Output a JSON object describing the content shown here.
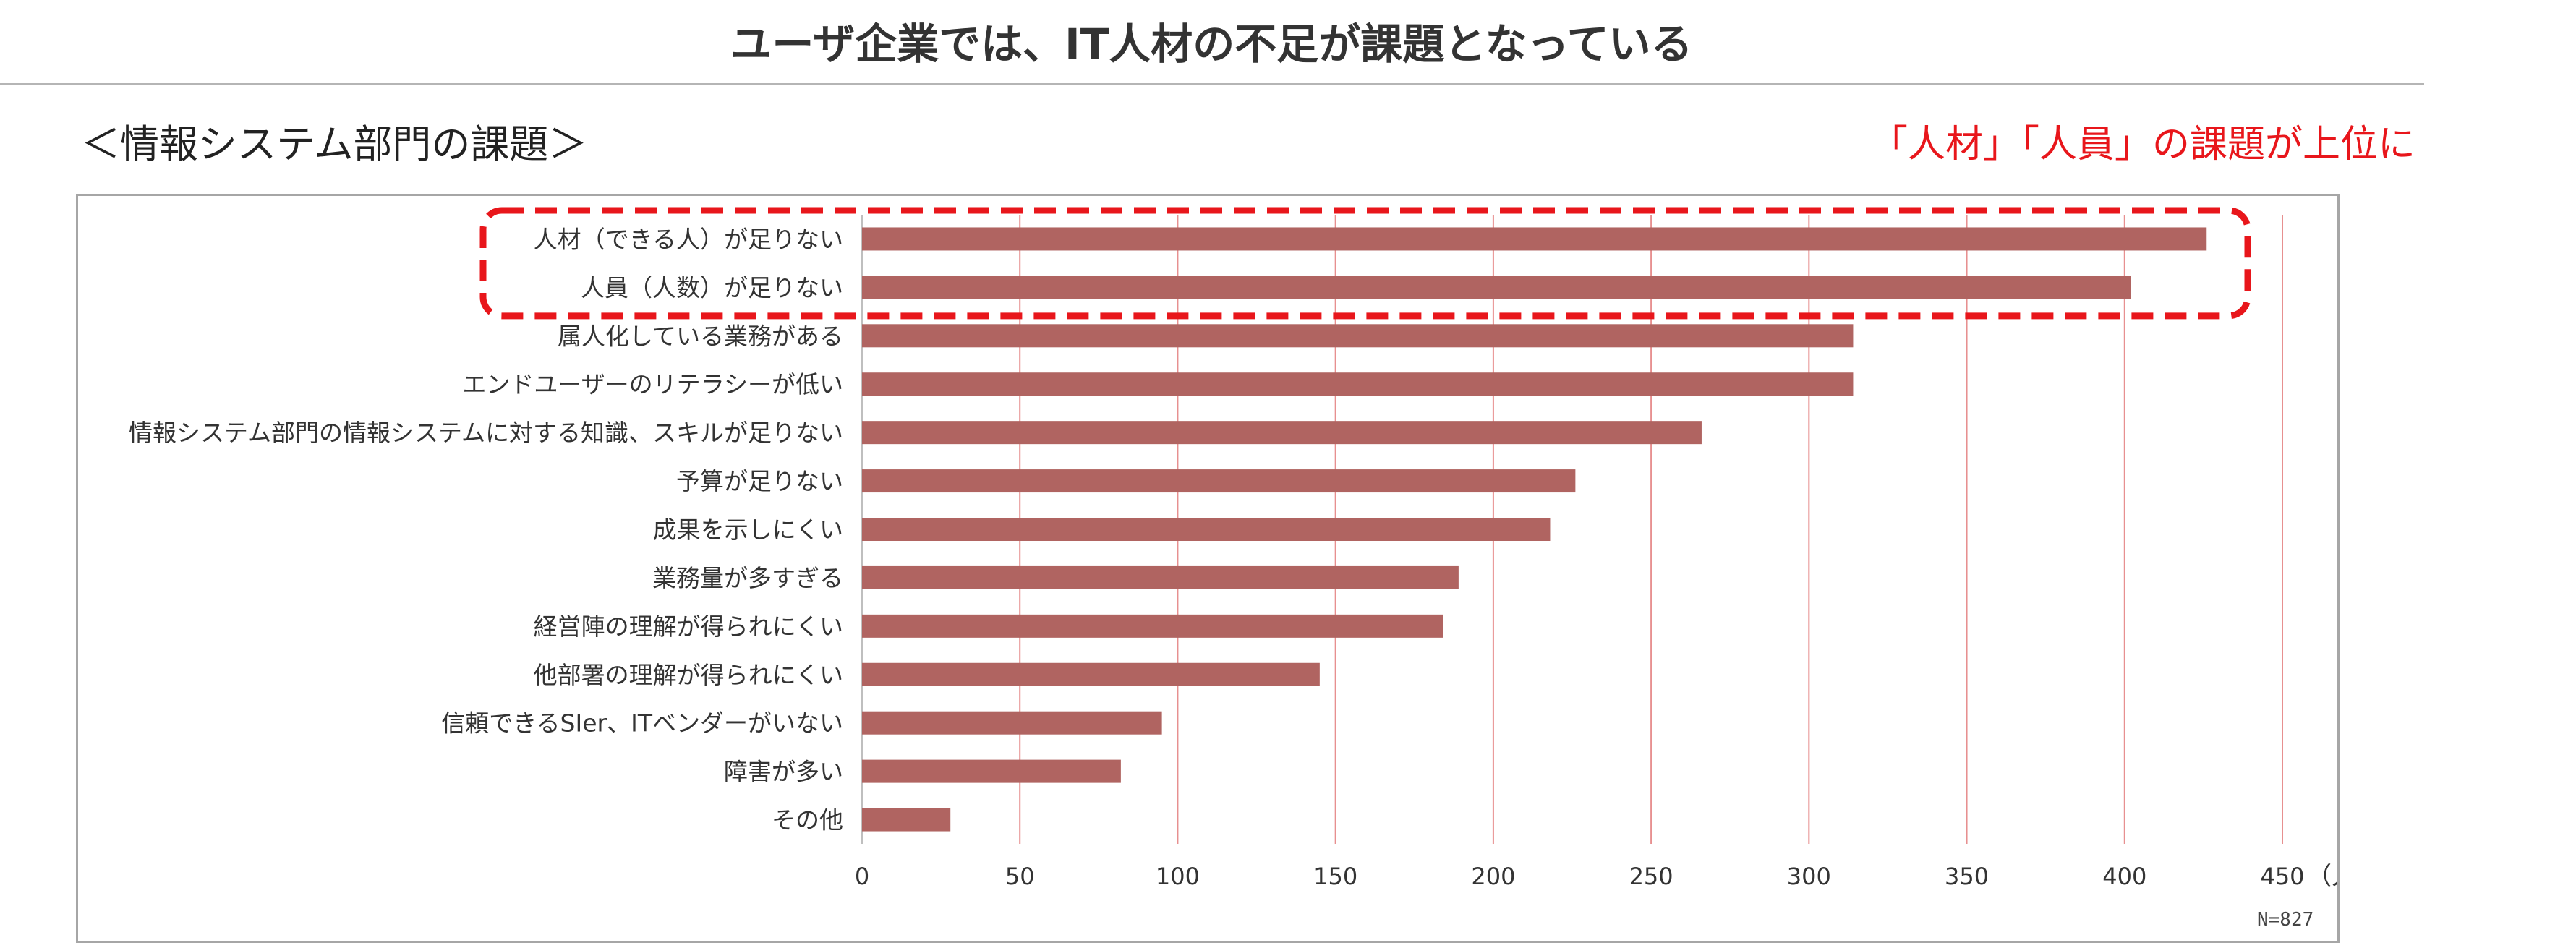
{
  "page": {
    "title": "ユーザ企業では、IT人材の不足が課題となっている",
    "section_heading": "＜情報システム部門の課題＞",
    "callout": "「人材」「人員」の課題が上位に",
    "note": "N=827"
  },
  "colors": {
    "bar": "#b06461",
    "gridline": "#e79090",
    "highlight": "#e8161b",
    "frame": "#a6a6a6"
  },
  "chart_data": {
    "type": "bar",
    "orientation": "horizontal",
    "categories": [
      "人材（できる人）が足りない",
      "人員（人数）が足りない",
      "属人化している業務がある",
      "エンドユーザーのリテラシーが低い",
      "情報システム部門の情報システムに対する知識、スキルが足りない",
      "予算が足りない",
      "成果を示しにくい",
      "業務量が多すぎる",
      "経営陣の理解が得られにくい",
      "他部署の理解が得られにくい",
      "信頼できるSIer、ITベンダーがいない",
      "障害が多い",
      "その他"
    ],
    "values": [
      426,
      402,
      314,
      314,
      266,
      226,
      218,
      189,
      184,
      145,
      95,
      82,
      28
    ],
    "xlim": [
      0,
      450
    ],
    "ticks": [
      "0",
      "50",
      "100",
      "150",
      "200",
      "250",
      "300",
      "350",
      "400",
      "450"
    ],
    "tick_values": [
      0,
      50,
      100,
      150,
      200,
      250,
      300,
      350,
      400,
      450
    ],
    "unit": "（人）",
    "grid": "vertical",
    "highlighted_categories": [
      0,
      1
    ]
  }
}
